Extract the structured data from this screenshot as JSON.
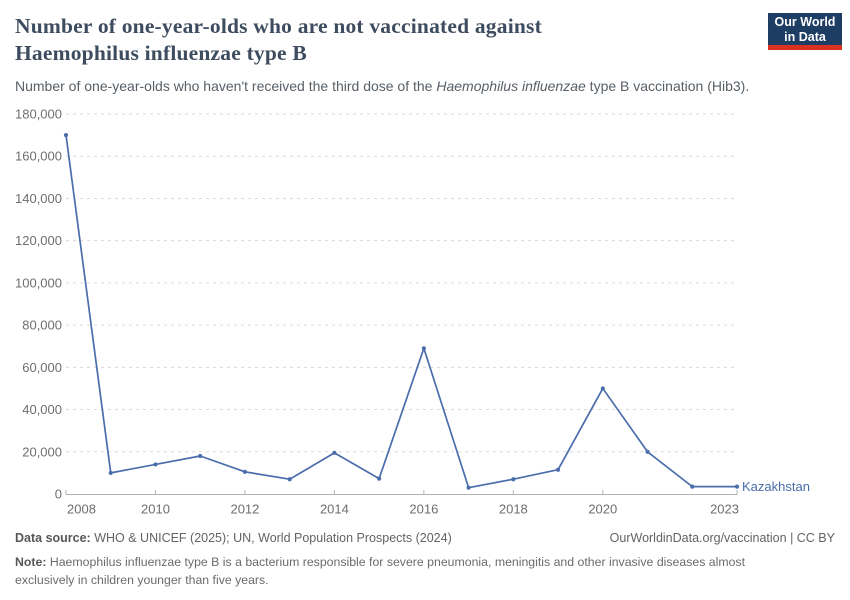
{
  "header": {
    "title_lines": [
      "Number of one-year-olds who are not vaccinated against",
      "Haemophilus influenzae type B"
    ],
    "subtitle_pre": "Number of one-year-olds who haven't received the third dose of the ",
    "subtitle_italic": "Haemophilus influenzae",
    "subtitle_post": " type B vaccination (Hib3).",
    "logo": {
      "line1": "Our World",
      "line2": "in Data",
      "bg_color": "#1d3d63",
      "accent_color": "#dc3023"
    }
  },
  "chart_data": {
    "type": "line",
    "title": "Number of one-year-olds who are not vaccinated against Haemophilus influenzae type B",
    "x": [
      2008,
      2009,
      2010,
      2011,
      2012,
      2013,
      2014,
      2015,
      2016,
      2017,
      2018,
      2019,
      2020,
      2021,
      2022,
      2023
    ],
    "series": [
      {
        "name": "Kazakhstan",
        "color": "#4a6dab",
        "values": [
          170000,
          10000,
          14000,
          18000,
          10500,
          7000,
          19500,
          7300,
          69000,
          3000,
          7000,
          11500,
          50000,
          20000,
          3500,
          3500
        ]
      }
    ],
    "x_ticks": [
      2008,
      2010,
      2012,
      2014,
      2016,
      2018,
      2020,
      2023
    ],
    "y_ticks": [
      0,
      20000,
      40000,
      60000,
      80000,
      100000,
      120000,
      140000,
      160000,
      180000
    ],
    "xlim": [
      2008,
      2023
    ],
    "ylim": [
      0,
      180000
    ],
    "xlabel": "",
    "ylabel": "",
    "grid": "horizontal-dashed",
    "legend_position": "end-of-line-label",
    "axis_label_color": "#6e6e6e",
    "gridline_color": "#dadada",
    "axis_line_color": "#b3b3b3"
  },
  "footer": {
    "data_source_label": "Data source:",
    "data_source_text": " WHO & UNICEF (2025); UN, World Population Prospects (2024)",
    "attribution": "OurWorldinData.org/vaccination | CC BY",
    "note_label": "Note:",
    "note_text": " Haemophilus influenzae type B is a bacterium responsible for severe pneumonia, meningitis and other invasive diseases almost exclusively in children younger than five years."
  }
}
